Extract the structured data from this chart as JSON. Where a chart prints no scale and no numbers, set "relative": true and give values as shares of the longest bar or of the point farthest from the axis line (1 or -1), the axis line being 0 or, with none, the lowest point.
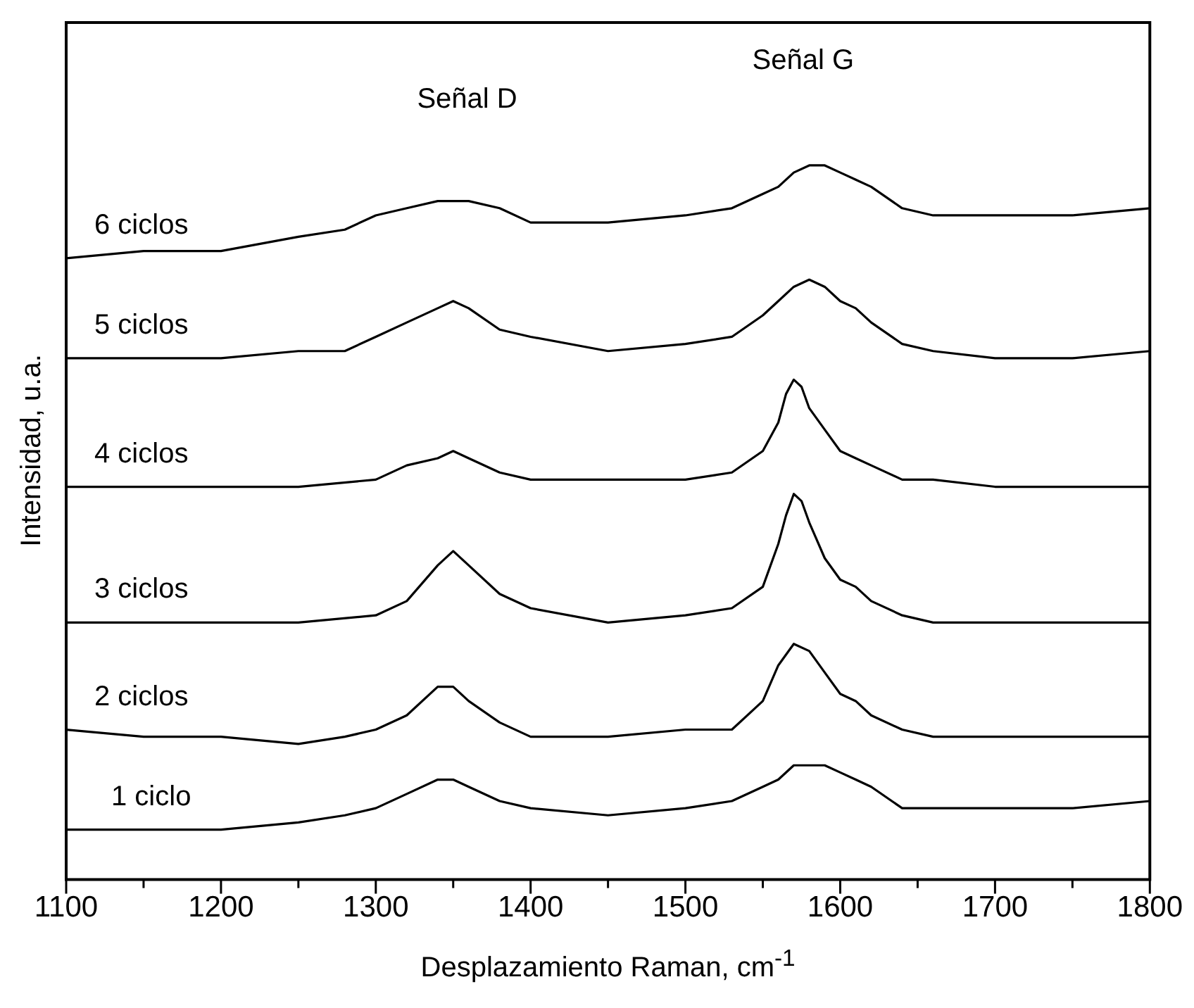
{
  "chart_data": {
    "type": "line",
    "relative": true,
    "xlabel": "Desplazamiento Raman, cm$^{-1}$",
    "ylabel": "Intensidad, u.a.",
    "xlim": [
      1100,
      1800
    ],
    "xticks": [
      1100,
      {
        "value": 1150,
        "label": null
      },
      1200,
      {
        "value": 1250,
        "label": null
      },
      1300,
      {
        "value": 1350,
        "label": null
      },
      1400,
      {
        "value": 1450,
        "label": null
      },
      1500,
      {
        "value": 1550,
        "label": null
      },
      1600,
      {
        "value": 1650,
        "label": null
      },
      1700,
      {
        "value": 1750,
        "label": null
      },
      1800
    ],
    "grid": false,
    "legend": false,
    "marker": "none",
    "line_style": "solid",
    "annotations": [
      "Señal D",
      "Señal G"
    ],
    "x": [
      1100,
      1150,
      1200,
      1250,
      1280,
      1300,
      1320,
      1340,
      1350,
      1360,
      1380,
      1400,
      1450,
      1500,
      1530,
      1550,
      1560,
      1570,
      1580,
      1590,
      1600,
      1610,
      1620,
      1640,
      1660,
      1700,
      1750,
      1800
    ],
    "series": [
      {
        "name": "6 ciclos",
        "color": "#000000",
        "values": [
          0.87,
          0.88,
          0.88,
          0.9,
          0.91,
          0.93,
          0.94,
          0.95,
          0.95,
          0.95,
          0.94,
          0.92,
          0.92,
          0.93,
          0.94,
          0.96,
          0.97,
          0.99,
          1.0,
          1.0,
          0.99,
          0.98,
          0.97,
          0.94,
          0.93,
          0.93,
          0.93,
          0.94
        ]
      },
      {
        "name": "5 ciclos",
        "color": "#000000",
        "values": [
          0.73,
          0.73,
          0.73,
          0.74,
          0.74,
          0.76,
          0.78,
          0.8,
          0.81,
          0.8,
          0.77,
          0.76,
          0.74,
          0.75,
          0.76,
          0.79,
          0.81,
          0.83,
          0.84,
          0.83,
          0.81,
          0.8,
          0.78,
          0.75,
          0.74,
          0.73,
          0.73,
          0.74
        ]
      },
      {
        "name": "4 ciclos",
        "color": "#000000",
        "x": [
          1100,
          1200,
          1250,
          1300,
          1320,
          1340,
          1350,
          1360,
          1380,
          1400,
          1450,
          1500,
          1530,
          1550,
          1560,
          1565,
          1570,
          1575,
          1580,
          1590,
          1600,
          1610,
          1620,
          1640,
          1660,
          1700,
          1800
        ],
        "values": [
          0.55,
          0.55,
          0.55,
          0.56,
          0.58,
          0.59,
          0.6,
          0.59,
          0.57,
          0.56,
          0.56,
          0.56,
          0.57,
          0.6,
          0.64,
          0.68,
          0.7,
          0.69,
          0.66,
          0.63,
          0.6,
          0.59,
          0.58,
          0.56,
          0.56,
          0.55,
          0.55
        ]
      },
      {
        "name": "3 ciclos",
        "color": "#000000",
        "x": [
          1100,
          1200,
          1250,
          1300,
          1320,
          1340,
          1350,
          1360,
          1380,
          1400,
          1450,
          1500,
          1530,
          1550,
          1560,
          1565,
          1570,
          1575,
          1580,
          1590,
          1600,
          1610,
          1620,
          1640,
          1660,
          1700,
          1800
        ],
        "values": [
          0.36,
          0.36,
          0.36,
          0.37,
          0.39,
          0.44,
          0.46,
          0.44,
          0.4,
          0.38,
          0.36,
          0.37,
          0.38,
          0.41,
          0.47,
          0.51,
          0.54,
          0.53,
          0.5,
          0.45,
          0.42,
          0.41,
          0.39,
          0.37,
          0.36,
          0.36,
          0.36
        ]
      },
      {
        "name": "2 ciclos",
        "color": "#000000",
        "values": [
          0.21,
          0.2,
          0.2,
          0.19,
          0.2,
          0.21,
          0.23,
          0.27,
          0.27,
          0.25,
          0.22,
          0.2,
          0.2,
          0.21,
          0.21,
          0.25,
          0.3,
          0.33,
          0.32,
          0.29,
          0.26,
          0.25,
          0.23,
          0.21,
          0.2,
          0.2,
          0.2,
          0.2
        ]
      },
      {
        "name": "1 ciclo",
        "color": "#000000",
        "values": [
          0.07,
          0.07,
          0.07,
          0.08,
          0.09,
          0.1,
          0.12,
          0.14,
          0.14,
          0.13,
          0.11,
          0.1,
          0.09,
          0.1,
          0.11,
          0.13,
          0.14,
          0.16,
          0.16,
          0.16,
          0.15,
          0.14,
          0.13,
          0.1,
          0.1,
          0.1,
          0.1,
          0.11
        ]
      }
    ]
  }
}
